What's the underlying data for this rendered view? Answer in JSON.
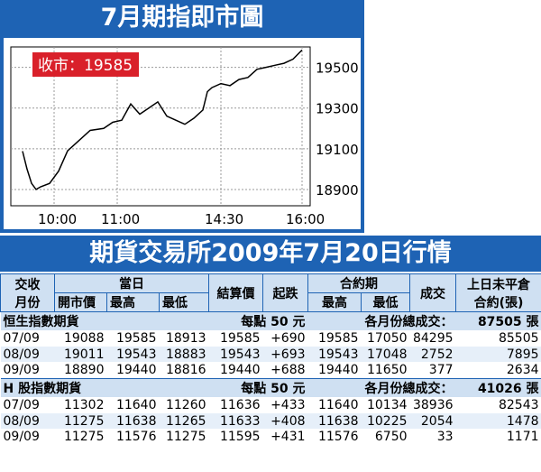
{
  "chart_title": "7月期指即市圖",
  "close_label": "收市：19585",
  "chart_data": {
    "type": "line",
    "x_ticks": [
      "10:00",
      "11:00",
      "14:30",
      "16:00"
    ],
    "y_ticks": [
      18900,
      19100,
      19300,
      19500
    ],
    "ylim": [
      18820,
      19600
    ],
    "series": [
      {
        "x": [
          0.0,
          0.5,
          1.0,
          1.5,
          2.0,
          3.0,
          4.0,
          5.0,
          6.0,
          7.5,
          9.0,
          10.0,
          11.0,
          12.0,
          13.0,
          14.0,
          15.0,
          16.0,
          17.0,
          18.0,
          19.0,
          20.0,
          20.5,
          21.0,
          22.0,
          23.0,
          24.0,
          25.0,
          26.0,
          27.0,
          28.0,
          29.0,
          30.0,
          31.0
        ],
        "values": [
          19088,
          19000,
          18930,
          18900,
          18913,
          18930,
          18990,
          19090,
          19130,
          19190,
          19200,
          19230,
          19240,
          19320,
          19270,
          19300,
          19330,
          19260,
          19240,
          19220,
          19250,
          19290,
          19380,
          19400,
          19420,
          19410,
          19440,
          19450,
          19490,
          19500,
          19510,
          19520,
          19540,
          19585
        ]
      }
    ]
  },
  "table_title": "期貨交易所2009年7月20日行情",
  "headers": {
    "month": "交收月份",
    "month_line1": "交收",
    "month_line2": "月份",
    "today": "當日",
    "open": "開市價",
    "high": "最高",
    "low": "最低",
    "settle": "結算價",
    "change": "起跌",
    "contract": "合約期",
    "c_high": "最高",
    "c_low": "最低",
    "volume": "成交",
    "oi_line1": "上日未平倉",
    "oi_line2": "合約(張)"
  },
  "sections": [
    {
      "name": "恒生指數期貨",
      "point": "每點 50 元",
      "total_label": "各月份總成交：",
      "total_value": "87505 張",
      "rows": [
        [
          "07/09",
          "19088",
          "19585",
          "18913",
          "19585",
          "+690",
          "19585",
          "17050",
          "84295",
          "85505"
        ],
        [
          "08/09",
          "19011",
          "19543",
          "18883",
          "19543",
          "+693",
          "19543",
          "17048",
          "2752",
          "7895"
        ],
        [
          "09/09",
          "18890",
          "19440",
          "18816",
          "19440",
          "+688",
          "19440",
          "11650",
          "377",
          "2634"
        ]
      ]
    },
    {
      "name": "H 股指數期貨",
      "point": "每點 50 元",
      "total_label": "各月份總成交：",
      "total_value": "41026 張",
      "rows": [
        [
          "07/09",
          "11302",
          "11640",
          "11260",
          "11636",
          "+433",
          "11640",
          "10134",
          "38936",
          "82543"
        ],
        [
          "08/09",
          "11275",
          "11638",
          "11265",
          "11633",
          "+408",
          "11638",
          "10225",
          "2054",
          "1478"
        ],
        [
          "09/09",
          "11275",
          "11576",
          "11275",
          "11595",
          "+431",
          "11576",
          "6750",
          "33",
          "1171"
        ]
      ]
    }
  ],
  "colors": {
    "brand_blue": "#1e63b4",
    "header_fill": "#cfe0f2",
    "row_alt": "#e6eff9",
    "badge_red": "#d9202a"
  }
}
